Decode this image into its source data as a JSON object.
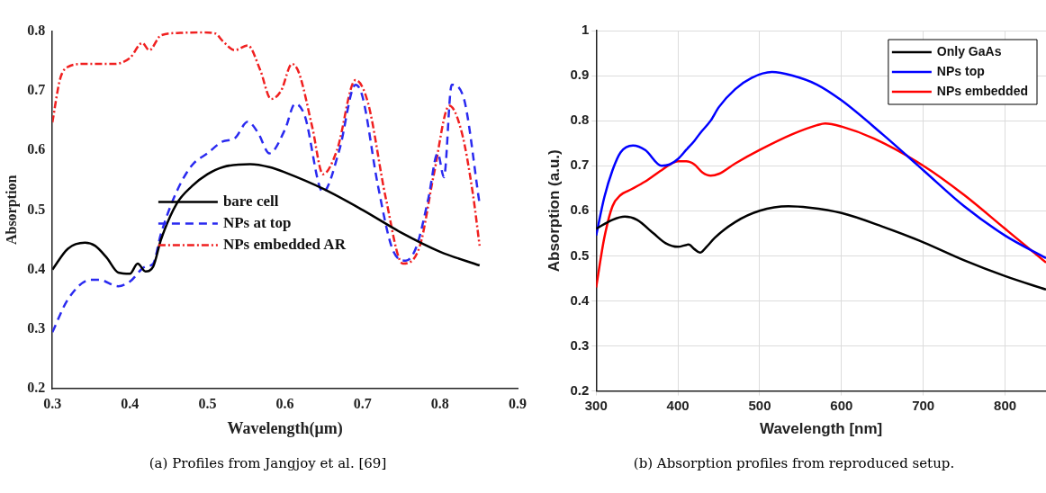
{
  "chart_data": [
    {
      "type": "line",
      "xlabel": "Wavelength(μm)",
      "ylabel": "Absorption",
      "xlim": [
        0.3,
        0.9
      ],
      "ylim": [
        0.2,
        0.8
      ],
      "xticks": [
        0.3,
        0.4,
        0.5,
        0.6,
        0.7,
        0.8,
        0.9
      ],
      "yticks": [
        0.2,
        0.3,
        0.4,
        0.5,
        0.6,
        0.7,
        0.8
      ],
      "grid": false,
      "legend": "bottom",
      "annotations": [
        "(a) Profiles from Jangjoy et al. [69]"
      ],
      "series": [
        {
          "name": "bare cell",
          "color": "#000000",
          "line_style": "solid",
          "x": [
            0.3,
            0.32,
            0.342,
            0.355,
            0.37,
            0.385,
            0.4,
            0.41,
            0.42,
            0.43,
            0.44,
            0.46,
            0.48,
            0.5,
            0.52,
            0.555,
            0.58,
            0.6,
            0.65,
            0.7,
            0.75,
            0.8,
            0.851
          ],
          "values": [
            0.4,
            0.435,
            0.445,
            0.44,
            0.42,
            0.395,
            0.393,
            0.41,
            0.397,
            0.405,
            0.45,
            0.51,
            0.54,
            0.56,
            0.572,
            0.577,
            0.572,
            0.563,
            0.535,
            0.5,
            0.462,
            0.43,
            0.407
          ]
        },
        {
          "name": "NPs at top",
          "color": "#2a2af0",
          "line_style": "dashed",
          "x": [
            0.3,
            0.32,
            0.35,
            0.36,
            0.385,
            0.4,
            0.42,
            0.43,
            0.44,
            0.46,
            0.48,
            0.5,
            0.52,
            0.535,
            0.552,
            0.565,
            0.58,
            0.6,
            0.613,
            0.625,
            0.649,
            0.67,
            0.691,
            0.7,
            0.72,
            0.74,
            0.756,
            0.77,
            0.785,
            0.797,
            0.805,
            0.815,
            0.83,
            0.851
          ],
          "values": [
            0.295,
            0.35,
            0.383,
            0.383,
            0.372,
            0.38,
            0.405,
            0.41,
            0.46,
            0.53,
            0.575,
            0.595,
            0.615,
            0.62,
            0.648,
            0.63,
            0.595,
            0.635,
            0.678,
            0.66,
            0.53,
            0.6,
            0.71,
            0.69,
            0.54,
            0.43,
            0.415,
            0.44,
            0.52,
            0.595,
            0.555,
            0.71,
            0.69,
            0.51
          ]
        },
        {
          "name": "NPs embedded AR",
          "color": "#f02020",
          "line_style": "dashdot",
          "x": [
            0.3,
            0.31,
            0.32,
            0.34,
            0.38,
            0.4,
            0.416,
            0.425,
            0.44,
            0.465,
            0.49,
            0.51,
            0.52,
            0.535,
            0.552,
            0.568,
            0.582,
            0.595,
            0.609,
            0.618,
            0.635,
            0.649,
            0.667,
            0.691,
            0.707,
            0.73,
            0.752,
            0.774,
            0.792,
            0.812,
            0.828,
            0.842,
            0.851
          ],
          "values": [
            0.647,
            0.72,
            0.74,
            0.745,
            0.745,
            0.755,
            0.78,
            0.768,
            0.793,
            0.797,
            0.798,
            0.796,
            0.783,
            0.768,
            0.776,
            0.735,
            0.686,
            0.7,
            0.745,
            0.73,
            0.64,
            0.56,
            0.6,
            0.718,
            0.68,
            0.52,
            0.41,
            0.44,
            0.56,
            0.675,
            0.63,
            0.53,
            0.44
          ]
        }
      ]
    },
    {
      "type": "line",
      "xlabel": "Wavelength [nm]",
      "ylabel": "Absorption (a.u.)",
      "xlim": [
        300,
        850
      ],
      "ylim": [
        0.2,
        1
      ],
      "xticks": [
        300,
        400,
        500,
        600,
        700,
        800
      ],
      "yticks": [
        0.2,
        0.3,
        0.4,
        0.5,
        0.6,
        0.7,
        0.8,
        0.9,
        1
      ],
      "grid": true,
      "legend": "top right",
      "annotations": [
        "(b) Absorption profiles from reproduced setup."
      ],
      "series": [
        {
          "name": "Only GaAs",
          "color": "#000000",
          "line_style": "solid",
          "x": [
            300,
            320,
            335,
            350,
            370,
            385,
            400,
            413,
            420,
            427,
            435,
            445,
            470,
            500,
            535,
            560,
            600,
            650,
            700,
            750,
            800,
            850
          ],
          "values": [
            0.56,
            0.58,
            0.587,
            0.58,
            0.55,
            0.528,
            0.52,
            0.525,
            0.515,
            0.507,
            0.52,
            0.54,
            0.575,
            0.6,
            0.61,
            0.607,
            0.595,
            0.565,
            0.53,
            0.49,
            0.455,
            0.425
          ]
        },
        {
          "name": "NPs top",
          "color": "#0000ff",
          "line_style": "solid",
          "x": [
            300,
            310,
            320,
            330,
            345,
            360,
            380,
            390,
            400,
            410,
            420,
            427,
            440,
            450,
            470,
            490,
            515,
            540,
            570,
            600,
            650,
            700,
            750,
            800,
            850
          ],
          "values": [
            0.545,
            0.63,
            0.69,
            0.73,
            0.745,
            0.735,
            0.7,
            0.703,
            0.715,
            0.735,
            0.755,
            0.772,
            0.8,
            0.83,
            0.87,
            0.895,
            0.908,
            0.9,
            0.88,
            0.845,
            0.77,
            0.69,
            0.61,
            0.545,
            0.495
          ]
        },
        {
          "name": "NPs embedded",
          "color": "#ff0000",
          "line_style": "solid",
          "x": [
            300,
            310,
            320,
            330,
            340,
            360,
            380,
            400,
            410,
            420,
            430,
            440,
            450,
            470,
            500,
            540,
            570,
            580,
            600,
            640,
            700,
            750,
            800,
            850
          ],
          "values": [
            0.43,
            0.54,
            0.61,
            0.635,
            0.645,
            0.665,
            0.69,
            0.71,
            0.71,
            0.703,
            0.685,
            0.678,
            0.682,
            0.705,
            0.735,
            0.77,
            0.79,
            0.794,
            0.787,
            0.76,
            0.7,
            0.635,
            0.56,
            0.485
          ]
        }
      ]
    }
  ]
}
